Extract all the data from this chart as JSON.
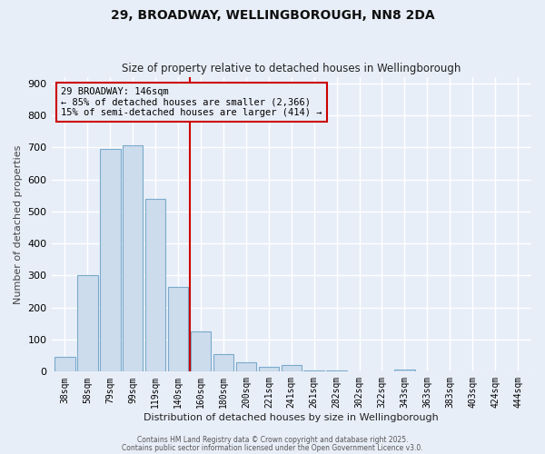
{
  "title": "29, BROADWAY, WELLINGBOROUGH, NN8 2DA",
  "subtitle": "Size of property relative to detached houses in Wellingborough",
  "xlabel": "Distribution of detached houses by size in Wellingborough",
  "ylabel": "Number of detached properties",
  "categories": [
    "38sqm",
    "58sqm",
    "79sqm",
    "99sqm",
    "119sqm",
    "140sqm",
    "160sqm",
    "180sqm",
    "200sqm",
    "221sqm",
    "241sqm",
    "261sqm",
    "282sqm",
    "302sqm",
    "322sqm",
    "343sqm",
    "363sqm",
    "383sqm",
    "403sqm",
    "424sqm",
    "444sqm"
  ],
  "values": [
    45,
    300,
    695,
    705,
    540,
    265,
    125,
    55,
    28,
    15,
    20,
    5,
    3,
    2,
    1,
    8,
    1,
    1,
    1,
    1,
    1
  ],
  "bar_color": "#ccdcec",
  "bar_edge_color": "#7aaacc",
  "vline_color": "#cc0000",
  "annotation_box_text": "29 BROADWAY: 146sqm\n← 85% of detached houses are smaller (2,366)\n15% of semi-detached houses are larger (414) →",
  "box_edge_color": "#cc0000",
  "ylim": [
    0,
    920
  ],
  "yticks": [
    0,
    100,
    200,
    300,
    400,
    500,
    600,
    700,
    800,
    900
  ],
  "bg_color": "#e8eef8",
  "grid_color": "#ffffff",
  "footer1": "Contains HM Land Registry data © Crown copyright and database right 2025.",
  "footer2": "Contains public sector information licensed under the Open Government Licence v3.0."
}
